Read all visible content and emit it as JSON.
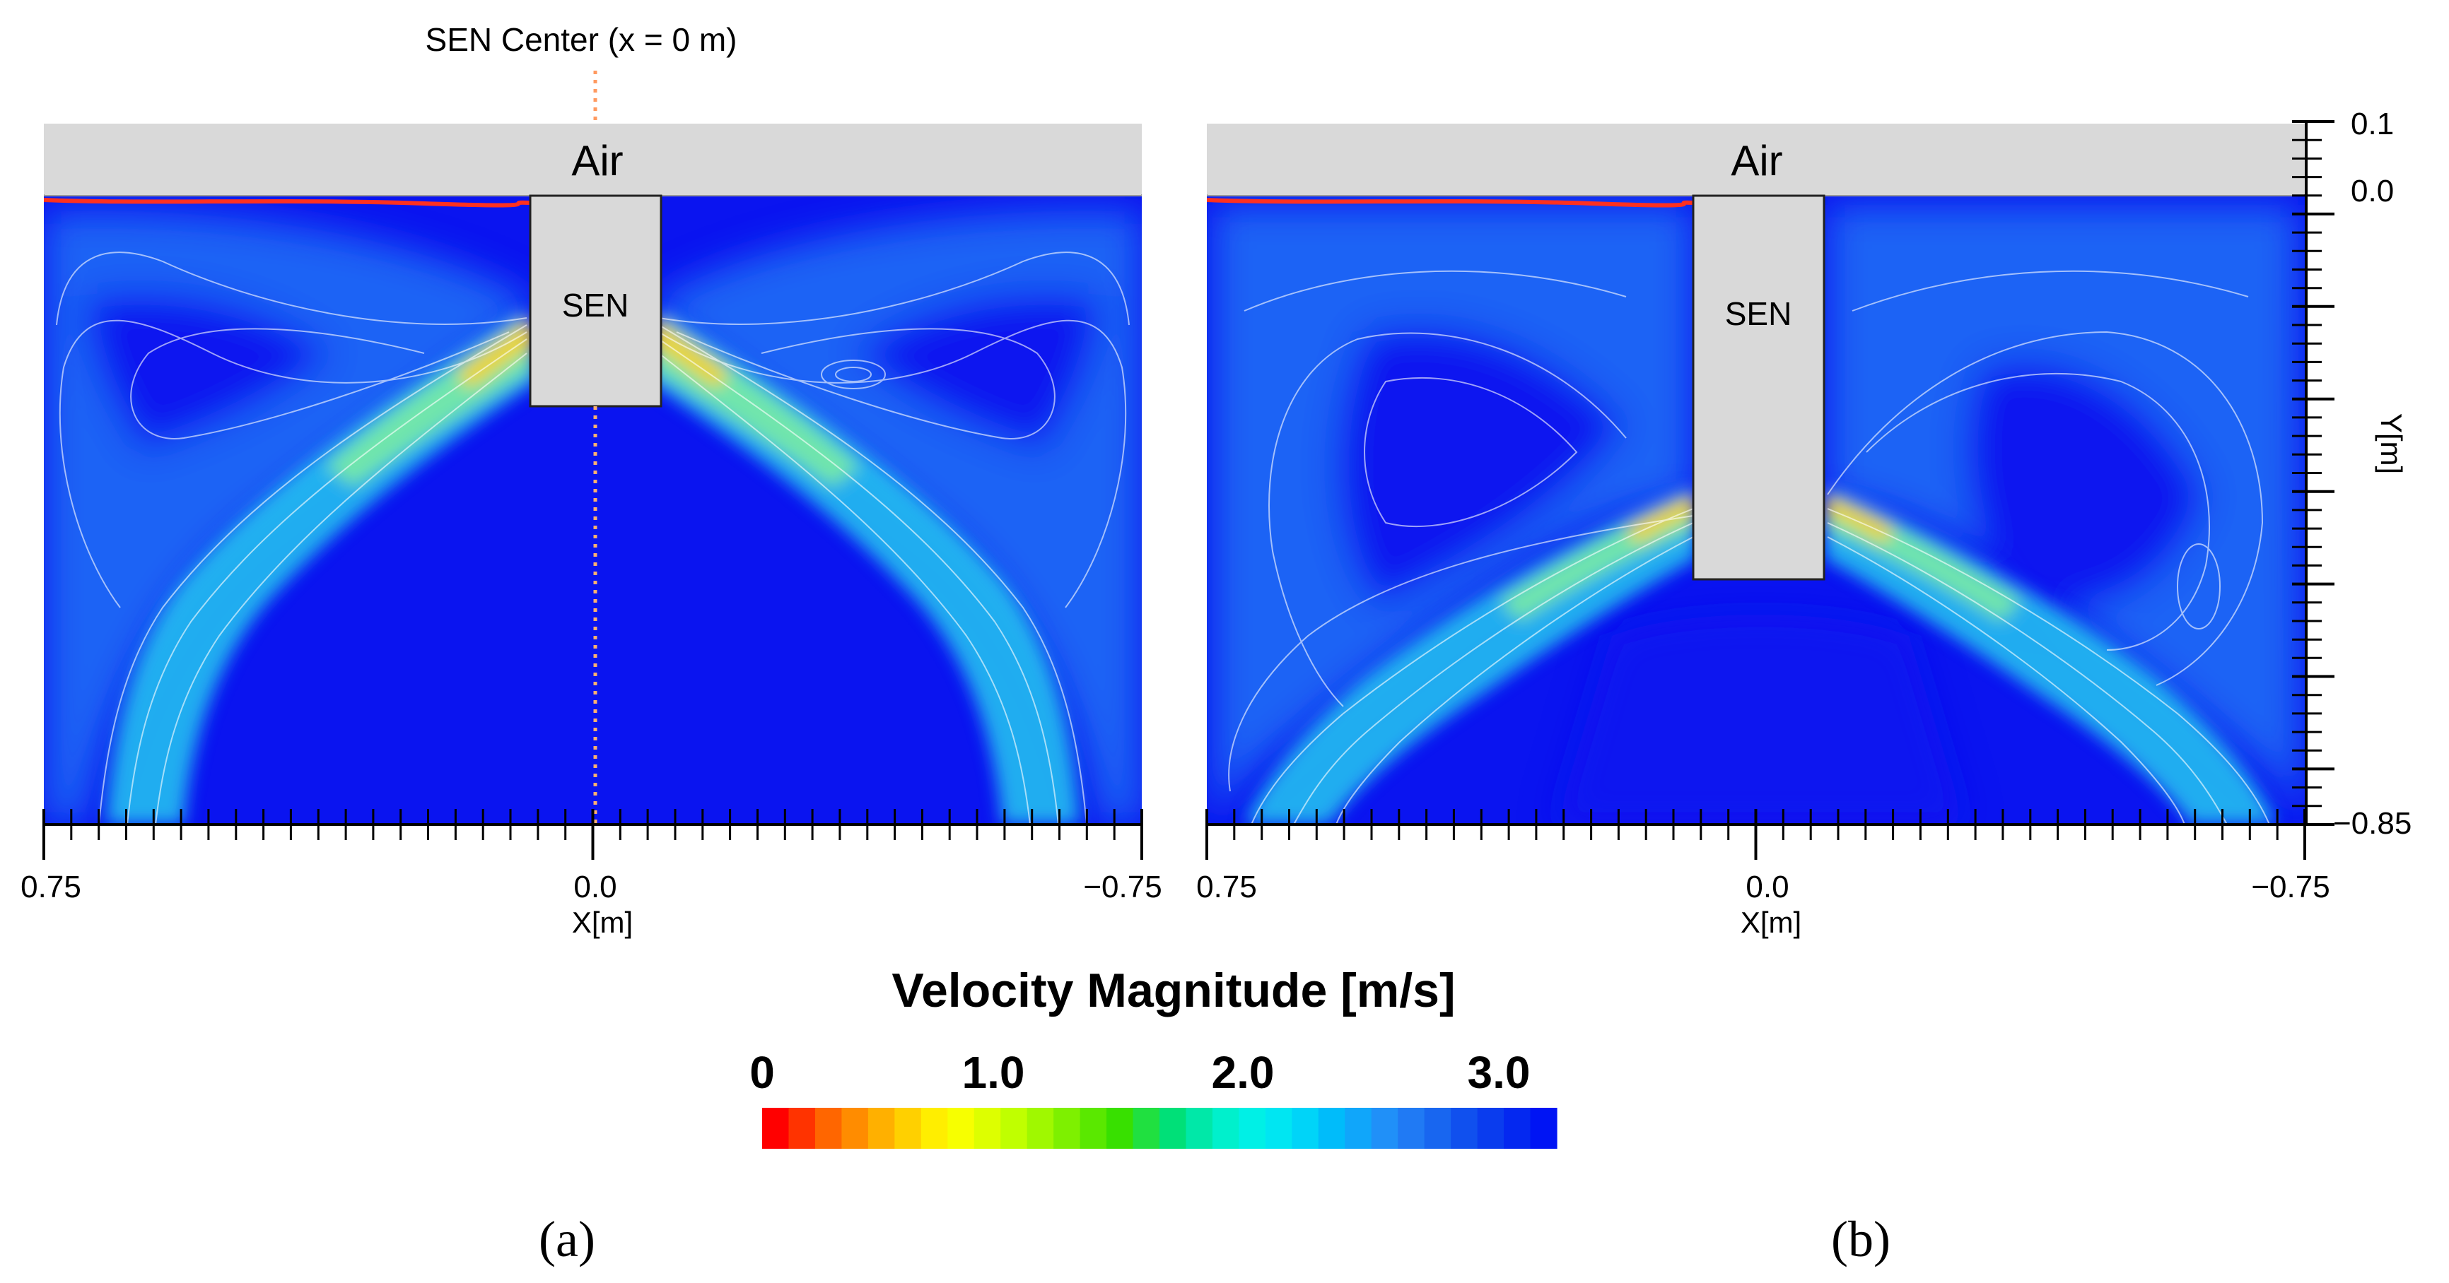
{
  "panels": {
    "a": {
      "label": "(a)",
      "air_label": "Air",
      "sen_label": "SEN",
      "x_axis": {
        "label": "X[m]",
        "tick_left": "0.75",
        "tick_center": "0.0",
        "tick_right": "−0.75"
      },
      "sen_center_annotation": "SEN Center (x = 0 m)"
    },
    "b": {
      "label": "(b)",
      "air_label": "Air",
      "sen_label": "SEN",
      "x_axis": {
        "label": "X[m]",
        "tick_left": "0.75",
        "tick_center": "0.0",
        "tick_right": "−0.75"
      },
      "y_axis": {
        "label": "Y[m]",
        "tick_top": "0.1",
        "tick_zero": "0.0",
        "tick_bottom": "−0.85"
      }
    }
  },
  "legend": {
    "title": "Velocity Magnitude [m/s]",
    "tick_0": "0",
    "tick_1": "1.0",
    "tick_2": "2.0",
    "tick_3": "3.0",
    "min": 0,
    "max": 3.0,
    "colors": [
      "#ff0000",
      "#ff3300",
      "#ff6600",
      "#ff8c00",
      "#ffb000",
      "#ffd000",
      "#ffee00",
      "#f7ff00",
      "#ddff00",
      "#c0ff00",
      "#a0f800",
      "#7ef000",
      "#5ae800",
      "#38e000",
      "#20e040",
      "#00e078",
      "#00e8a8",
      "#00f0cc",
      "#00f0e6",
      "#00e6f2",
      "#00d4f8",
      "#00bcfa",
      "#10a6fa",
      "#2090f8",
      "#207af4",
      "#1866f0",
      "#1050ee",
      "#0a3cee",
      "#0428f0",
      "#0014f4"
    ]
  },
  "colors": {
    "liquid": "#0a14f0",
    "air": "#d9d9d9",
    "sen": "#d9d9d9",
    "interface": "#ff3020",
    "streamline": "#ffffff",
    "centerline": "#ffb070"
  }
}
